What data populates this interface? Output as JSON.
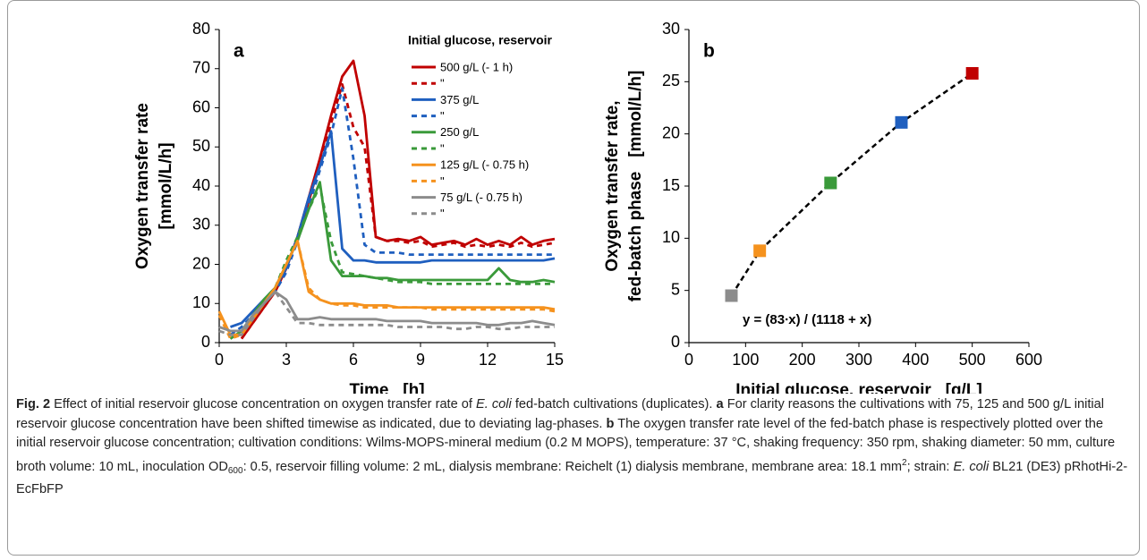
{
  "chart_data": [
    {
      "type": "line",
      "panel_label": "a",
      "xlabel": "Time   [h]",
      "ylabel": [
        "Oxygen transfer rate",
        "[mmol/L/h]"
      ],
      "x": [
        0,
        0.5,
        1,
        1.5,
        2,
        2.5,
        3,
        3.5,
        4,
        4.5,
        5,
        5.5,
        6,
        6.5,
        7,
        7.5,
        8,
        8.5,
        9,
        9.5,
        10,
        10.5,
        11,
        11.5,
        12,
        12.5,
        13,
        13.5,
        14,
        14.5,
        15
      ],
      "xlim": [
        0,
        15
      ],
      "xticks": [
        0,
        3,
        6,
        9,
        12,
        15
      ],
      "ylim": [
        0,
        80
      ],
      "yticks": [
        0,
        10,
        20,
        30,
        40,
        50,
        60,
        70,
        80
      ],
      "legend": "upper right",
      "legend_title": "Initial glucose, reservoir",
      "series": [
        {
          "name": "500 g/L (- 1 h)",
          "color": "#c00000",
          "dashed": false,
          "values": [
            null,
            null,
            1,
            5,
            9,
            13,
            19,
            27,
            37,
            47,
            58,
            68,
            72,
            58,
            27,
            26,
            26.5,
            26,
            27,
            25,
            25.5,
            26,
            25,
            26.5,
            25,
            26,
            25,
            27,
            25,
            26,
            26.5
          ]
        },
        {
          "name": "\"",
          "color": "#c00000",
          "dashed": true,
          "values": [
            null,
            null,
            1,
            5,
            9,
            13,
            19,
            27,
            36,
            46,
            56,
            66,
            55,
            50,
            27,
            26,
            26,
            25.5,
            26,
            24.5,
            25,
            25.5,
            24.5,
            25,
            24.5,
            25,
            24.5,
            25.5,
            24.5,
            25,
            25.5
          ]
        },
        {
          "name": "375 g/L",
          "color": "#1f5fbf",
          "dashed": false,
          "values": [
            null,
            4,
            5,
            8,
            11,
            14,
            19,
            27,
            37,
            45,
            54,
            24,
            21,
            21,
            20.5,
            20.5,
            20.5,
            20.5,
            20.5,
            21,
            21,
            21,
            21,
            21,
            21,
            21,
            21,
            21,
            21,
            21,
            21.5
          ]
        },
        {
          "name": "\"",
          "color": "#1f5fbf",
          "dashed": true,
          "values": [
            null,
            2,
            4,
            7,
            10,
            13,
            18,
            26,
            35,
            44,
            53,
            65,
            47,
            25,
            23,
            23,
            23,
            22.5,
            22.5,
            22.5,
            22.5,
            22.5,
            22.5,
            22.5,
            22.5,
            22.5,
            22.5,
            22.5,
            22.5,
            22.5,
            22.5
          ]
        },
        {
          "name": "250 g/L",
          "color": "#3a9a3a",
          "dashed": false,
          "values": [
            null,
            1,
            3,
            7,
            11,
            14,
            20,
            26,
            34,
            41,
            21,
            17,
            17,
            17,
            16.5,
            16.5,
            16,
            16,
            16,
            16,
            16,
            16,
            16,
            16,
            16,
            19,
            16,
            15.5,
            15.5,
            16,
            15.5
          ]
        },
        {
          "name": "\"",
          "color": "#3a9a3a",
          "dashed": true,
          "values": [
            null,
            1,
            3,
            7,
            11,
            14,
            21,
            27,
            34,
            40,
            26,
            18,
            17.5,
            17,
            16.5,
            16,
            15.5,
            15.5,
            15.5,
            15,
            15,
            15,
            15,
            15,
            15,
            15,
            15,
            15,
            15,
            15,
            15
          ]
        },
        {
          "name": "125 g/L (- 0.75 h)",
          "color": "#f5921e",
          "dashed": false,
          "values": [
            8,
            2,
            2,
            6,
            10,
            14,
            20,
            26,
            13,
            11,
            10,
            10,
            10,
            9.5,
            9.5,
            9.5,
            9,
            9,
            9,
            9,
            9,
            9,
            9,
            9,
            9,
            9,
            9,
            9,
            9,
            9,
            8.5
          ]
        },
        {
          "name": "\"",
          "color": "#f5921e",
          "dashed": true,
          "values": [
            7,
            1,
            2,
            6,
            10,
            14,
            20,
            26,
            14,
            11,
            10,
            9.5,
            9.5,
            9,
            9,
            9,
            9,
            9,
            9,
            8.5,
            8.5,
            8.5,
            8.5,
            8.5,
            8.5,
            8.5,
            8.5,
            8.5,
            8.5,
            8.5,
            8
          ]
        },
        {
          "name": "75 g/L (- 0.75 h)",
          "color": "#8c8c8c",
          "dashed": false,
          "values": [
            4,
            3,
            3,
            7,
            10,
            13,
            11,
            6,
            6,
            6.5,
            6,
            6,
            6,
            6,
            6,
            5.5,
            5.5,
            5.5,
            5.5,
            5,
            5,
            5,
            5,
            5,
            4.5,
            4.5,
            5,
            5,
            5.5,
            5,
            4.5
          ]
        },
        {
          "name": "\"",
          "color": "#8c8c8c",
          "dashed": true,
          "values": [
            3,
            2,
            2,
            6,
            10,
            13,
            9,
            5,
            5,
            4.5,
            4.5,
            4.5,
            4.5,
            4.5,
            4.5,
            4.5,
            4,
            4,
            4,
            4,
            4,
            3.5,
            3.5,
            4,
            4,
            3.5,
            3.5,
            4,
            4,
            4,
            4
          ]
        }
      ]
    },
    {
      "type": "scatter",
      "panel_label": "b",
      "xlabel": "Initial glucose, reservoir   [g/L]",
      "ylabel": [
        "Oxygen transfer rate,",
        "fed-batch phase   [mmol/L/h]"
      ],
      "x": [
        75,
        125,
        250,
        375,
        500
      ],
      "values": [
        4.5,
        8.8,
        15.3,
        21.1,
        25.8
      ],
      "colors": [
        "#8c8c8c",
        "#f5921e",
        "#3a9a3a",
        "#1f5fbf",
        "#c00000"
      ],
      "xlim": [
        0,
        600
      ],
      "xticks": [
        0,
        100,
        200,
        300,
        400,
        500,
        600
      ],
      "ylim": [
        0,
        30
      ],
      "yticks": [
        0,
        5,
        10,
        15,
        20,
        25,
        30
      ],
      "annotation": "y = (83∙x) / (1118 + x)"
    }
  ],
  "caption": [
    {
      "text": "Fig. 2",
      "style": "bold"
    },
    {
      "text": "  Effect of initial reservoir glucose concentration on oxygen transfer rate of ",
      "style": "normal"
    },
    {
      "text": "E. coli",
      "style": "italic"
    },
    {
      "text": " fed-batch cultivations (duplicates). ",
      "style": "normal"
    },
    {
      "text": "a",
      "style": "bold"
    },
    {
      "text": " For clarity reasons the cultivations with 75, 125 and 500 g/L initial reservoir glucose concentration have been shifted timewise as indicated, due to deviating lag-phases. ",
      "style": "normal"
    },
    {
      "text": "b",
      "style": "bold"
    },
    {
      "text": " The oxygen transfer rate level of the fed-batch phase is respectively plotted over the initial reservoir glucose concentration; cultivation conditions: Wilms-MOPS-mineral medium (0.2 M MOPS), temperature: 37 °C, shaking frequency: 350 rpm, shaking diameter: 50 mm, culture broth volume: 10 mL, inoculation OD",
      "style": "normal"
    },
    {
      "text": "600",
      "style": "sub"
    },
    {
      "text": ": 0.5, reservoir filling volume: 2 mL, dialysis membrane: Reichelt (1) dialysis membrane, membrane area: 18.1 mm",
      "style": "normal"
    },
    {
      "text": "2",
      "style": "sup"
    },
    {
      "text": "; strain: ",
      "style": "normal"
    },
    {
      "text": "E. coli",
      "style": "italic"
    },
    {
      "text": " BL21 (DE3) pRhotHi-2-EcFbFP",
      "style": "normal"
    }
  ]
}
